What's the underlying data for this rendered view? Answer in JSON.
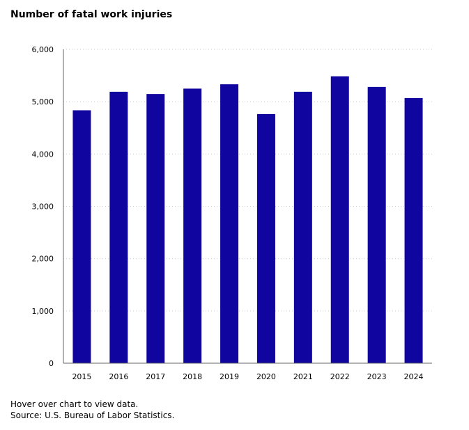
{
  "chart_data": {
    "type": "bar",
    "title": "Number of fatal work injuries",
    "categories": [
      "2015",
      "2016",
      "2017",
      "2018",
      "2019",
      "2020",
      "2021",
      "2022",
      "2023",
      "2024"
    ],
    "values": [
      4836,
      5190,
      5147,
      5250,
      5333,
      4764,
      5190,
      5486,
      5283,
      5070
    ],
    "ylim": [
      0,
      6000
    ],
    "yticks": [
      0,
      1000,
      2000,
      3000,
      4000,
      5000,
      6000
    ],
    "ytick_labels": [
      "0",
      "1,000",
      "2,000",
      "3,000",
      "4,000",
      "5,000",
      "6,000"
    ],
    "grid": "horizontal dotted",
    "bar_color": "#10069f",
    "xlabel": "",
    "ylabel": ""
  },
  "footer": {
    "hint": "Hover over chart to view data.",
    "source": "Source: U.S. Bureau of Labor Statistics."
  }
}
